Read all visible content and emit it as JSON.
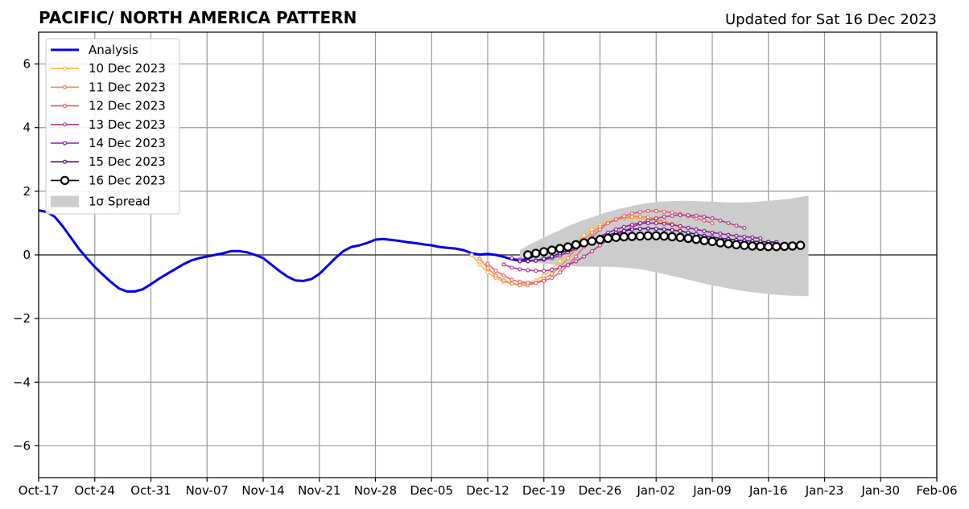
{
  "chart_data": {
    "type": "line",
    "title": "PACIFIC/ NORTH AMERICA PATTERN",
    "subtitle": "Updated for Sat 16 Dec 2023",
    "xlabel": "",
    "ylabel": "",
    "x_ticks": [
      "Oct-17",
      "Oct-24",
      "Oct-31",
      "Nov-07",
      "Nov-14",
      "Nov-21",
      "Nov-28",
      "Dec-05",
      "Dec-12",
      "Dec-19",
      "Dec-26",
      "Jan-02",
      "Jan-09",
      "Jan-16",
      "Jan-23",
      "Jan-30",
      "Feb-06"
    ],
    "x_tick_days": [
      0,
      7,
      14,
      21,
      28,
      35,
      42,
      49,
      56,
      63,
      70,
      77,
      84,
      91,
      98,
      105,
      112
    ],
    "xlim_days": [
      0,
      112
    ],
    "ylim": [
      -7,
      7
    ],
    "y_ticks": [
      -6,
      -4,
      -2,
      0,
      2,
      4,
      6
    ],
    "y_tick_labels": [
      "−6",
      "−4",
      "−2",
      "0",
      "2",
      "4",
      "6"
    ],
    "grid": true,
    "legend_position": "top-left",
    "analysis": {
      "name": "Analysis",
      "color": "#0000ee",
      "points": [
        [
          0,
          1.4
        ],
        [
          1,
          1.35
        ],
        [
          2,
          1.2
        ],
        [
          3,
          0.9
        ],
        [
          4,
          0.55
        ],
        [
          5,
          0.2
        ],
        [
          6,
          -0.1
        ],
        [
          7,
          -0.38
        ],
        [
          8,
          -0.62
        ],
        [
          9,
          -0.85
        ],
        [
          10,
          -1.05
        ],
        [
          11,
          -1.15
        ],
        [
          12,
          -1.15
        ],
        [
          13,
          -1.08
        ],
        [
          14,
          -0.92
        ],
        [
          15,
          -0.75
        ],
        [
          16,
          -0.6
        ],
        [
          17,
          -0.45
        ],
        [
          18,
          -0.3
        ],
        [
          19,
          -0.18
        ],
        [
          20,
          -0.1
        ],
        [
          21,
          -0.05
        ],
        [
          22,
          0
        ],
        [
          23,
          0.05
        ],
        [
          24,
          0.12
        ],
        [
          25,
          0.12
        ],
        [
          26,
          0.08
        ],
        [
          27,
          0
        ],
        [
          28,
          -0.1
        ],
        [
          29,
          -0.3
        ],
        [
          30,
          -0.5
        ],
        [
          31,
          -0.68
        ],
        [
          32,
          -0.8
        ],
        [
          33,
          -0.82
        ],
        [
          34,
          -0.76
        ],
        [
          35,
          -0.6
        ],
        [
          36,
          -0.35
        ],
        [
          37,
          -0.1
        ],
        [
          38,
          0.12
        ],
        [
          39,
          0.25
        ],
        [
          40,
          0.3
        ],
        [
          41,
          0.38
        ],
        [
          42,
          0.48
        ],
        [
          43,
          0.5
        ],
        [
          44,
          0.47
        ],
        [
          45,
          0.44
        ],
        [
          46,
          0.4
        ],
        [
          47,
          0.37
        ],
        [
          48,
          0.33
        ],
        [
          49,
          0.3
        ],
        [
          50,
          0.25
        ],
        [
          51,
          0.22
        ],
        [
          52,
          0.2
        ],
        [
          53,
          0.15
        ],
        [
          54,
          0.05
        ],
        [
          55,
          0.01
        ],
        [
          56,
          0.03
        ],
        [
          57,
          0
        ],
        [
          58,
          -0.06
        ],
        [
          59,
          -0.14
        ],
        [
          60,
          -0.18
        ],
        [
          61,
          -0.12
        ],
        [
          62,
          0
        ],
        [
          63,
          0.12
        ],
        [
          64,
          0.2
        ]
      ]
    },
    "forecasts": [
      {
        "name": "10 Dec 2023",
        "color": "#fdb94a",
        "start_day": 54,
        "values": [
          0,
          -0.3,
          -0.55,
          -0.72,
          -0.85,
          -0.9,
          -0.92,
          -0.88,
          -0.8,
          -0.65,
          -0.45,
          -0.2,
          0.1,
          0.4,
          0.62,
          0.8,
          0.95,
          1.05,
          1.12,
          1.15,
          1.15,
          1.15,
          1.12,
          1.08,
          1.0,
          0.9,
          0.8
        ]
      },
      {
        "name": "11 Dec 2023",
        "color": "#f4834f",
        "start_day": 55,
        "values": [
          -0.12,
          -0.42,
          -0.65,
          -0.8,
          -0.9,
          -0.95,
          -0.95,
          -0.88,
          -0.76,
          -0.6,
          -0.38,
          -0.1,
          0.2,
          0.48,
          0.7,
          0.88,
          1.0,
          1.1,
          1.17,
          1.2,
          1.2,
          1.18,
          1.12,
          1.05,
          0.97,
          0.88
        ]
      },
      {
        "name": "12 Dec 2023",
        "color": "#e3616e",
        "start_day": 56,
        "values": [
          -0.28,
          -0.5,
          -0.65,
          -0.78,
          -0.85,
          -0.88,
          -0.88,
          -0.82,
          -0.72,
          -0.55,
          -0.32,
          -0.05,
          0.25,
          0.55,
          0.8,
          1.0,
          1.12,
          1.22,
          1.3,
          1.35,
          1.38,
          1.38,
          1.36,
          1.33,
          1.28,
          1.22,
          1.15,
          1.08,
          1.0
        ]
      },
      {
        "name": "13 Dec 2023",
        "color": "#b63a8c",
        "start_day": 58,
        "values": [
          -0.3,
          -0.4,
          -0.45,
          -0.48,
          -0.5,
          -0.5,
          -0.47,
          -0.4,
          -0.32,
          -0.2,
          -0.05,
          0.12,
          0.3,
          0.48,
          0.62,
          0.75,
          0.87,
          0.98,
          1.08,
          1.15,
          1.2,
          1.23,
          1.25,
          1.25,
          1.23,
          1.2,
          1.15,
          1.08,
          1.0,
          0.92,
          0.85
        ]
      },
      {
        "name": "14 Dec 2023",
        "color": "#8b1ea0",
        "start_day": 59,
        "values": [
          -0.1,
          -0.15,
          -0.18,
          -0.18,
          -0.15,
          -0.1,
          -0.02,
          0.08,
          0.2,
          0.32,
          0.45,
          0.58,
          0.7,
          0.8,
          0.88,
          0.95,
          1.0,
          1.0,
          1.0,
          0.98,
          0.95,
          0.9,
          0.85,
          0.8,
          0.75,
          0.7,
          0.67,
          0.63,
          0.6,
          0.57,
          0.55,
          0.52
        ]
      },
      {
        "name": "15 Dec 2023",
        "color": "#4b0c90",
        "start_day": 60,
        "values": [
          -0.2,
          -0.2,
          -0.18,
          -0.12,
          -0.05,
          0.05,
          0.15,
          0.25,
          0.35,
          0.45,
          0.55,
          0.62,
          0.7,
          0.75,
          0.8,
          0.82,
          0.83,
          0.82,
          0.8,
          0.78,
          0.75,
          0.7,
          0.65,
          0.6,
          0.56,
          0.52,
          0.5,
          0.47,
          0.45,
          0.43,
          0.42,
          0.41,
          0.4
        ]
      }
    ],
    "current": {
      "name": "16 Dec 2023",
      "color": "#000000",
      "start_day": 61,
      "values": [
        0,
        0.05,
        0.1,
        0.15,
        0.2,
        0.25,
        0.32,
        0.38,
        0.43,
        0.48,
        0.52,
        0.55,
        0.57,
        0.58,
        0.59,
        0.6,
        0.6,
        0.59,
        0.57,
        0.55,
        0.52,
        0.49,
        0.45,
        0.42,
        0.38,
        0.35,
        0.32,
        0.3,
        0.28,
        0.27,
        0.26,
        0.26,
        0.27,
        0.28,
        0.3
      ]
    },
    "spread": {
      "name": "1σ Spread",
      "color": "#cccccc",
      "start_day": 60,
      "upper": [
        0.15,
        0.3,
        0.42,
        0.55,
        0.67,
        0.78,
        0.9,
        1.0,
        1.1,
        1.18,
        1.27,
        1.35,
        1.42,
        1.48,
        1.54,
        1.59,
        1.63,
        1.66,
        1.68,
        1.69,
        1.7,
        1.7,
        1.69,
        1.68,
        1.67,
        1.66,
        1.65,
        1.65,
        1.65,
        1.66,
        1.68,
        1.7,
        1.72,
        1.75,
        1.78,
        1.82,
        1.86
      ],
      "lower": [
        -0.12,
        -0.18,
        -0.22,
        -0.27,
        -0.3,
        -0.33,
        -0.35,
        -0.36,
        -0.37,
        -0.37,
        -0.37,
        -0.37,
        -0.38,
        -0.4,
        -0.42,
        -0.45,
        -0.5,
        -0.55,
        -0.6,
        -0.66,
        -0.72,
        -0.78,
        -0.84,
        -0.9,
        -0.96,
        -1.0,
        -1.05,
        -1.1,
        -1.14,
        -1.17,
        -1.2,
        -1.23,
        -1.25,
        -1.27,
        -1.28,
        -1.29,
        -1.3
      ]
    }
  }
}
